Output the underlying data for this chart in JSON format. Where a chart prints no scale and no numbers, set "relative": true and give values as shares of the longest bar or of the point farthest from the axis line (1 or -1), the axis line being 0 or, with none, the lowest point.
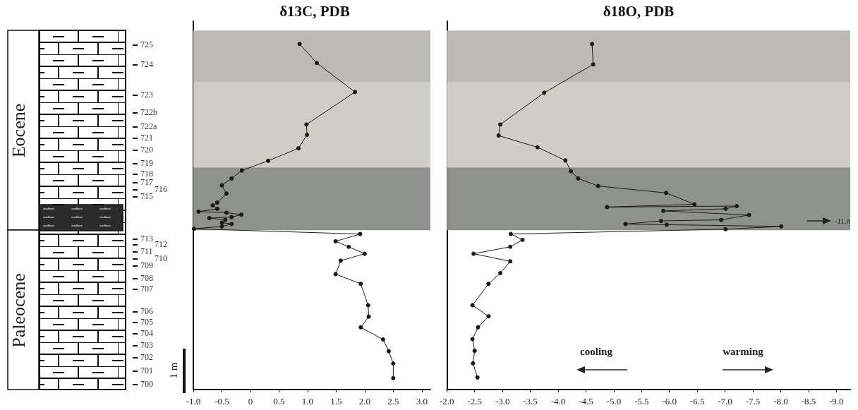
{
  "chart_data": [
    {
      "type": "line",
      "title": "δ13C, PDB",
      "marker": "circle",
      "grid": false,
      "relative": true,
      "series": [
        {
          "color": "#1a1a1a",
          "x": [
            0.86,
            1.16,
            1.83,
            0.98,
            0.99,
            0.84,
            0.31,
            -0.15,
            -0.33,
            -0.5,
            -0.42,
            -0.58,
            -0.66,
            -0.58,
            -0.91,
            -0.42,
            -0.16,
            -0.33,
            -0.72,
            -0.44,
            -0.5,
            -0.33,
            -0.5,
            -0.99,
            1.92,
            1.49,
            1.72,
            2.0,
            1.58,
            1.49,
            1.93,
            2.06,
            2.07,
            1.93,
            2.32,
            2.42,
            2.5,
            2.5
          ],
          "values": [
            1.0,
            0.945,
            0.861,
            0.767,
            0.737,
            0.698,
            0.662,
            0.634,
            0.611,
            0.591,
            0.567,
            0.541,
            0.533,
            0.523,
            0.515,
            0.512,
            0.506,
            0.499,
            0.496,
            0.491,
            0.483,
            0.479,
            0.472,
            0.465,
            0.45,
            0.429,
            0.413,
            0.393,
            0.373,
            0.334,
            0.306,
            0.244,
            0.211,
            0.18,
            0.145,
            0.111,
            0.075,
            0.033
          ]
        }
      ],
      "xlim": [
        -1.0,
        3.15
      ],
      "xticks": [
        {
          "value": -1,
          "label": "-1.0"
        },
        -0.5,
        0,
        0.5,
        {
          "value": 1,
          "label": "1.0"
        },
        1.5,
        {
          "value": 2,
          "label": "2.0"
        },
        2.5,
        {
          "value": 3,
          "label": "3.0"
        }
      ],
      "bands": [
        {
          "axis": "y",
          "from": 0.889,
          "to": 1.039,
          "color": "#bdb9b5"
        },
        {
          "axis": "y",
          "from": 0.643,
          "to": 0.889,
          "color": "#d0cdc7"
        },
        {
          "axis": "y",
          "from": 0.461,
          "to": 0.643,
          "color": "#8f918c"
        }
      ],
      "annotations": [
        "Eocene",
        "Paleocene",
        "1 m",
        "725",
        "724",
        "723",
        "722b",
        "722a",
        "721",
        "720",
        "719",
        "718",
        "717",
        "716",
        "715",
        "713",
        "712",
        "711",
        "710",
        "709",
        "708",
        "707",
        "706",
        "705",
        "704",
        "703",
        "702",
        "701",
        "700"
      ]
    },
    {
      "type": "line",
      "title": "δ18O, PDB",
      "marker": "circle",
      "grid": false,
      "relative": true,
      "series": [
        {
          "color": "#1a1a1a",
          "x": [
            -4.61,
            -4.63,
            -3.75,
            -2.96,
            -2.93,
            -3.63,
            -4.13,
            -4.23,
            -4.36,
            -4.72,
            -5.94,
            -6.45,
            -4.88,
            -7.21,
            -7.01,
            -5.89,
            -7.43,
            -6.93,
            -5.85,
            -5.21,
            -5.95,
            -8.01,
            -7.01,
            -3.15,
            -3.36,
            -3.14,
            -2.48,
            -3.14,
            -2.96,
            -2.75,
            -2.46,
            -2.75,
            -2.56,
            -2.46,
            -2.5,
            -2.47,
            -2.55
          ],
          "values": [
            1.0,
            0.941,
            0.859,
            0.767,
            0.735,
            0.701,
            0.663,
            0.632,
            0.611,
            0.589,
            0.569,
            0.536,
            0.528,
            0.531,
            0.523,
            0.517,
            0.505,
            0.491,
            0.488,
            0.479,
            0.477,
            0.472,
            0.464,
            0.45,
            0.433,
            0.413,
            0.393,
            0.371,
            0.337,
            0.306,
            0.244,
            0.212,
            0.18,
            0.146,
            0.112,
            0.076,
            0.035
          ]
        }
      ],
      "xlim": [
        -2.0,
        -9.25
      ],
      "xticks": [
        {
          "value": -2,
          "label": "-2.0"
        },
        -2.5,
        {
          "value": -3,
          "label": "-3.0"
        },
        -3.5,
        {
          "value": -4,
          "label": "-4.0"
        },
        -4.5,
        {
          "value": -5,
          "label": "-5.0"
        },
        -5.5,
        {
          "value": -6,
          "label": "-6.0"
        },
        -6.5,
        {
          "value": -7,
          "label": "-7.0"
        },
        -7.5,
        {
          "value": -8,
          "label": "-8.0"
        },
        -8.5,
        {
          "value": -9,
          "label": "-9.0"
        }
      ],
      "bands": [
        {
          "axis": "y",
          "from": 0.889,
          "to": 1.039,
          "color": "#bdb9b5"
        },
        {
          "axis": "y",
          "from": 0.643,
          "to": 0.889,
          "color": "#d0cdc7"
        },
        {
          "axis": "y",
          "from": 0.461,
          "to": 0.643,
          "color": "#8f918c"
        }
      ],
      "annotations": [
        "cooling",
        "warming",
        "-11.6"
      ]
    }
  ]
}
